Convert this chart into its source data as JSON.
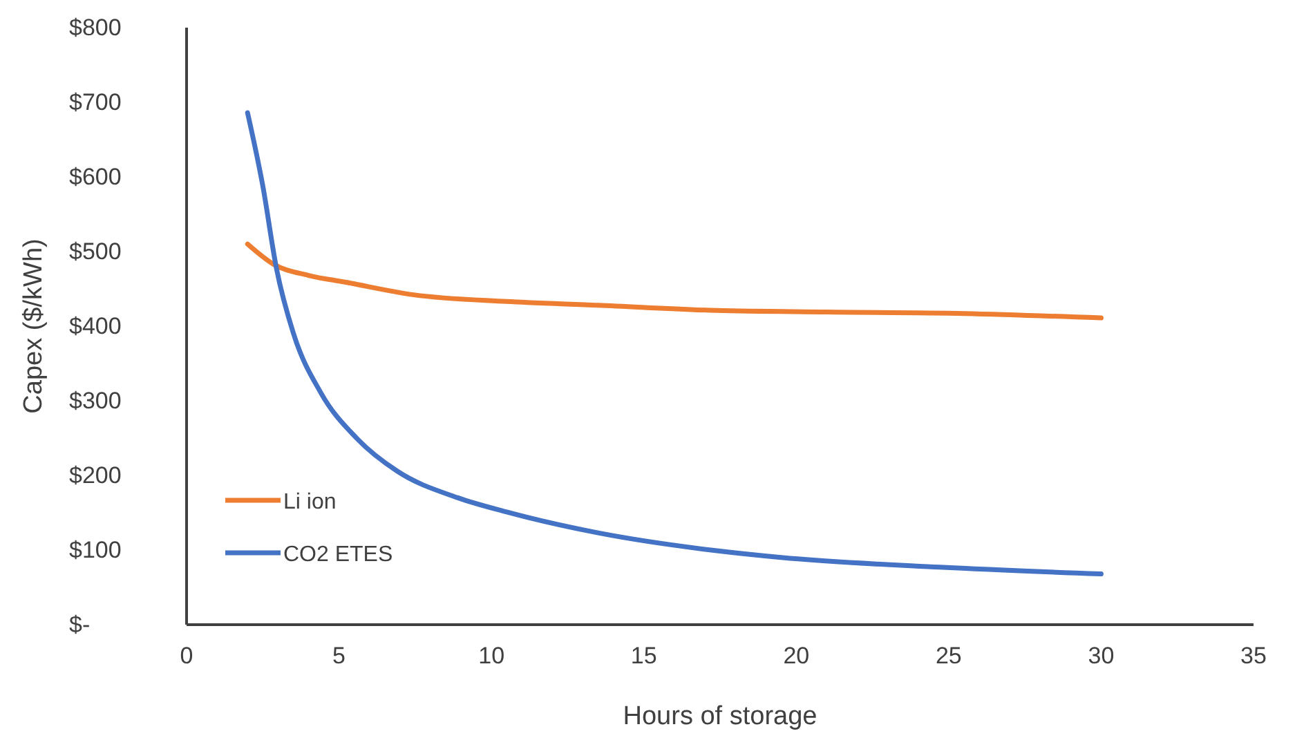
{
  "chart_data": {
    "type": "line",
    "xlabel": "Hours of storage",
    "ylabel": "Capex ($/kWh)",
    "xlim": [
      0,
      35
    ],
    "xticks": [
      0,
      5,
      10,
      15,
      20,
      25,
      30,
      35
    ],
    "ylim": [
      0,
      800
    ],
    "yticks": [
      {
        "value": 0,
        "label": "$-"
      },
      {
        "value": 100,
        "label": "$100"
      },
      {
        "value": 200,
        "label": "$200"
      },
      {
        "value": 300,
        "label": "$300"
      },
      {
        "value": 400,
        "label": "$400"
      },
      {
        "value": 500,
        "label": "$500"
      },
      {
        "value": 600,
        "label": "$600"
      },
      {
        "value": 700,
        "label": "$700"
      },
      {
        "value": 800,
        "label": "$800"
      }
    ],
    "grid": false,
    "legend": "bottom left",
    "marker": "none",
    "line_style": "solid",
    "series": [
      {
        "name": "Li ion",
        "color": "#ed7d31",
        "x": [
          2,
          2.85,
          4,
          5.2,
          7.45,
          10.5,
          13.5,
          17.4,
          21,
          25.5,
          30
        ],
        "values": [
          510,
          483,
          468,
          459,
          442,
          433,
          428,
          421,
          419,
          417,
          411
        ]
      },
      {
        "name": "CO2 ETES",
        "color": "#4472c4",
        "x": [
          2,
          2.5,
          2.95,
          3.5,
          4.4,
          5.6,
          6.9,
          8.9,
          10.5,
          13.5,
          17.4,
          19.5,
          24.7,
          30
        ],
        "values": [
          686,
          588,
          477,
          391,
          311,
          249,
          206,
          170,
          151,
          123,
          99,
          90,
          77,
          68
        ]
      }
    ]
  }
}
